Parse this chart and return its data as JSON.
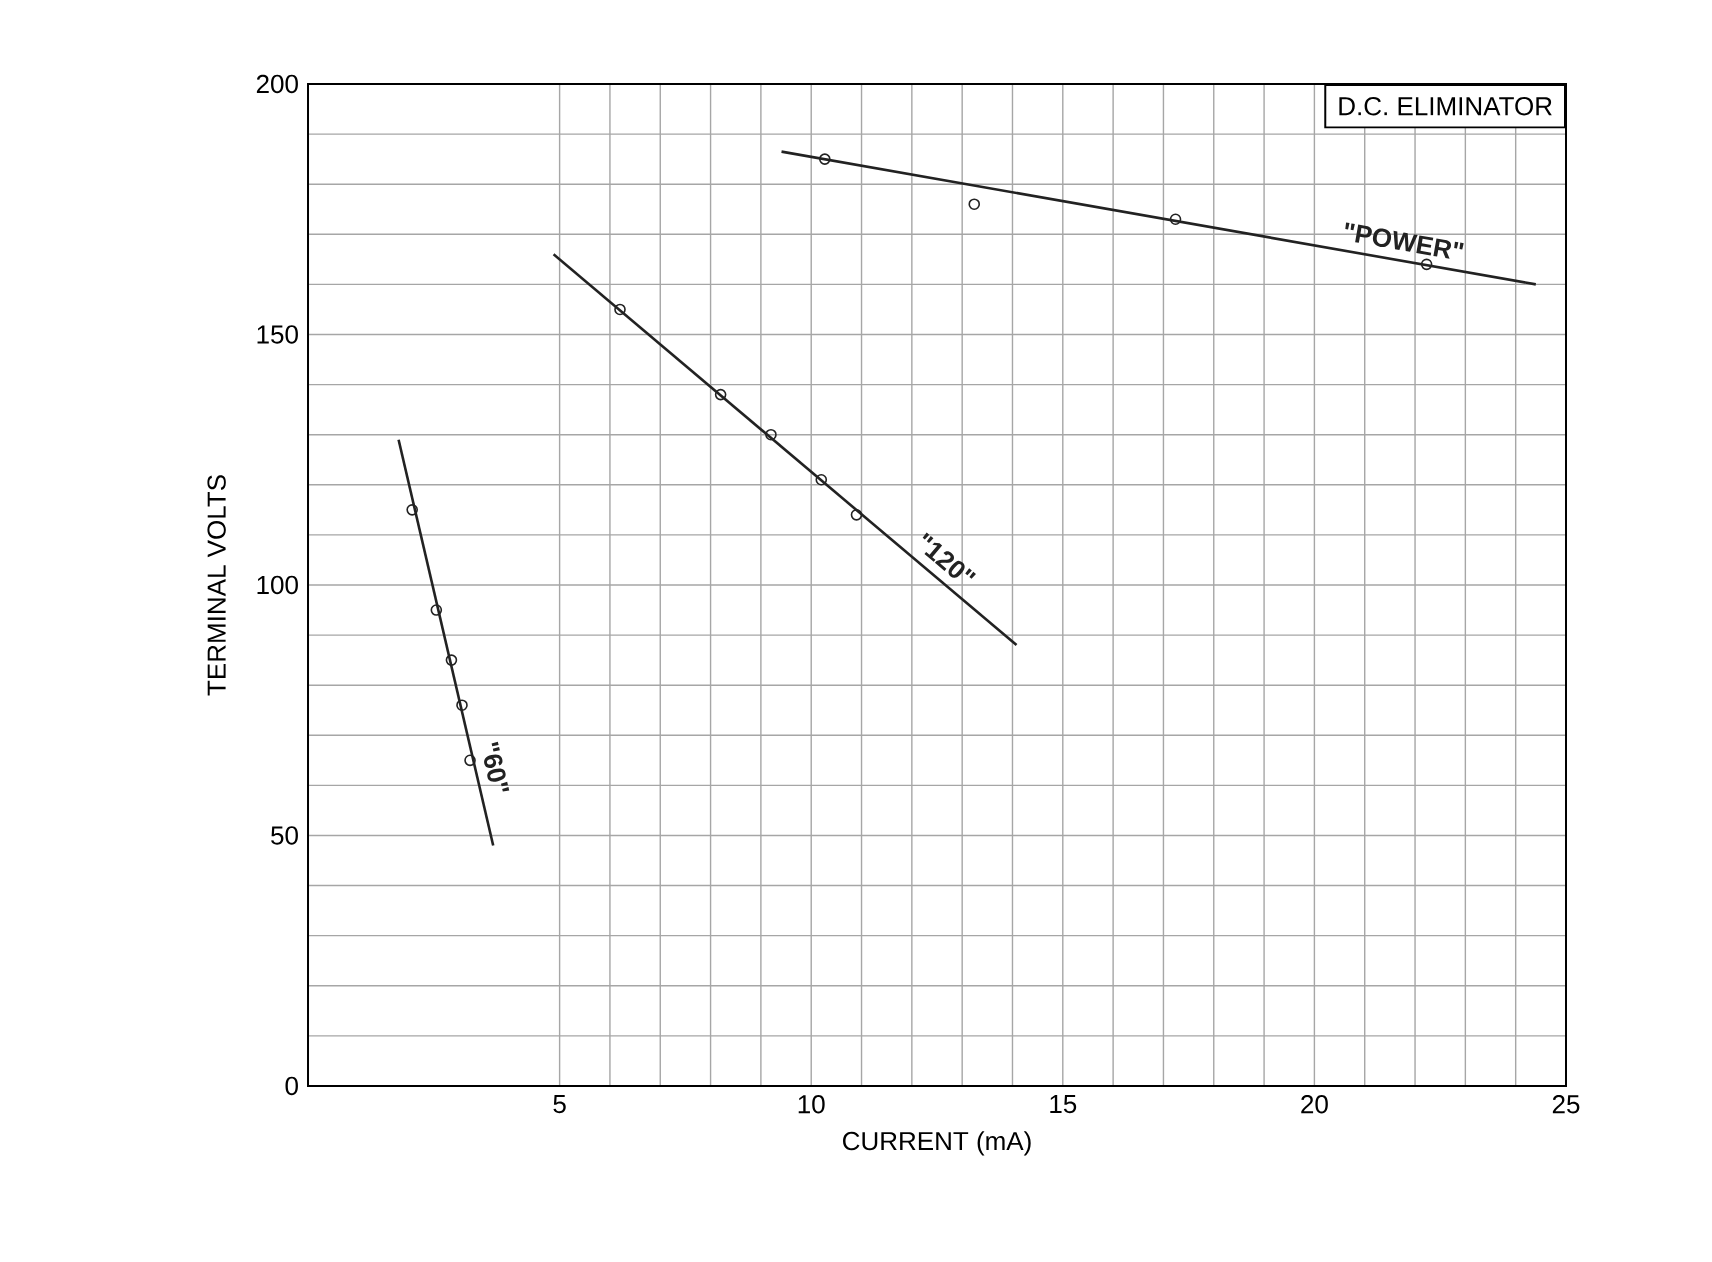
{
  "chart_data": {
    "type": "line",
    "title": "D.C. ELIMINATOR",
    "xlabel": "CURRENT (mA)",
    "ylabel": "TERMINAL VOLTS",
    "xlim": [
      0,
      25
    ],
    "ylim": [
      0,
      200
    ],
    "xticks": [
      5,
      10,
      15,
      20,
      25
    ],
    "yticks": [
      0,
      50,
      100,
      150,
      200
    ],
    "grid": true,
    "series": [
      {
        "name": "\"60\"",
        "marker": "none",
        "color": "#222222",
        "x": [
          1.8,
          3.68
        ],
        "values": [
          129,
          48
        ]
      },
      {
        "name": "\"120\"",
        "marker": "none",
        "color": "#222222",
        "x": [
          4.88,
          14.08
        ],
        "values": [
          166,
          88
        ]
      },
      {
        "name": "\"POWER\"",
        "marker": "none",
        "color": "#222222",
        "x": [
          9.41,
          24.4
        ],
        "values": [
          186.5,
          160
        ]
      },
      {
        "type": "scatter",
        "marker": "circle",
        "color": "#222222",
        "x": [
          2.07,
          2.55,
          2.85,
          3.06,
          3.22
        ],
        "values": [
          115,
          95,
          85,
          76,
          65
        ]
      },
      {
        "type": "scatter",
        "marker": "circle",
        "color": "#222222",
        "x": [
          6.2,
          8.2,
          9.2,
          10.2,
          10.9
        ],
        "values": [
          155,
          138,
          130,
          121,
          114
        ]
      },
      {
        "type": "scatter",
        "marker": "circle",
        "color": "#222222",
        "x": [
          10.27,
          13.24,
          17.24,
          22.23
        ],
        "values": [
          185,
          176,
          173,
          164
        ]
      }
    ]
  }
}
